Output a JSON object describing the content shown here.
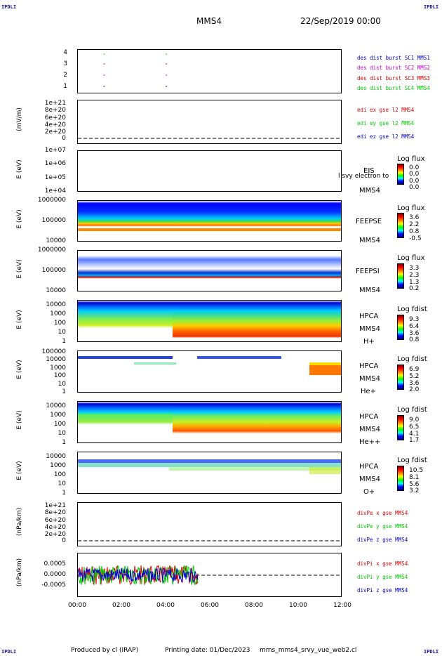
{
  "header": {
    "corner_tl": "IPDLI",
    "corner_tr": "IPDLI",
    "corner_bl": "IPDLI",
    "corner_br": "IPDLI",
    "spacecraft": "MMS4",
    "datetime": "22/Sep/2019 00:00"
  },
  "footer": {
    "produced": "Produced by cl (IRAP)",
    "printing": "Printing date: 01/Dec/2023",
    "file": "mms_mms4_srvy_vue_web2.cl"
  },
  "panels": {
    "p1": {
      "ticks": [
        "4",
        "3",
        "2",
        "1"
      ],
      "legend": [
        "des dist burst SC1 MMS1",
        "des dist burst SC2 MMS2",
        "des dist burst SC3 MMS3",
        "des dist burst SC4 MMS4"
      ]
    },
    "p2": {
      "ylabel": "(mV/m)",
      "ticks": [
        "1e+21",
        "8e+20",
        "6e+20",
        "4e+20",
        "2e+20",
        "0"
      ],
      "legend": [
        "edi ex gse l2 MMS4",
        "edi ey gse l2 MMS4",
        "edi ez gse l2 MMS4"
      ]
    },
    "p3": {
      "ylabel": "E (eV)",
      "ticks": [
        "1e+07",
        "1e+06",
        "1e+05",
        "1e+04"
      ],
      "side": [
        "EIS",
        "MMS4"
      ],
      "overlay": "l svy electron to",
      "cb_title": "Log flux",
      "cb_vals": [
        "0.0",
        "0.0",
        "0.0",
        "0.0"
      ]
    },
    "p4": {
      "ylabel": "E (eV)",
      "ticks": [
        "1000000",
        "100000",
        "10000"
      ],
      "side": [
        "FEEPSE",
        "MMS4"
      ],
      "cb_title": "Log flux",
      "cb_vals": [
        "3.6",
        "2.2",
        "0.8",
        "-0.5"
      ]
    },
    "p5": {
      "ylabel": "E (eV)",
      "ticks": [
        "1000000",
        "100000",
        "10000"
      ],
      "side": [
        "FEEPSI",
        "MMS4"
      ],
      "cb_title": "Log flux",
      "cb_vals": [
        "3.3",
        "2.3",
        "1.3",
        "0.2"
      ]
    },
    "p6": {
      "ylabel": "E (eV)",
      "ticks": [
        "10000",
        "1000",
        "100",
        "10",
        "1"
      ],
      "side": [
        "HPCA",
        "MMS4",
        "H+"
      ],
      "cb_title": "Log fdist",
      "cb_vals": [
        "9.3",
        "6.4",
        "3.6",
        "0.8"
      ]
    },
    "p7": {
      "ylabel": "E (eV)",
      "ticks": [
        "100000",
        "10000",
        "1000",
        "100",
        "10",
        "1"
      ],
      "side": [
        "HPCA",
        "MMS4",
        "He+"
      ],
      "cb_title": "Log fdist",
      "cb_vals": [
        "6.9",
        "5.2",
        "3.6",
        "2.0"
      ]
    },
    "p8": {
      "ylabel": "E (eV)",
      "ticks": [
        "10000",
        "1000",
        "100",
        "10",
        "1"
      ],
      "side": [
        "HPCA",
        "MMS4",
        "He++"
      ],
      "cb_title": "Log fdist",
      "cb_vals": [
        "9.0",
        "6.5",
        "4.1",
        "1.7"
      ]
    },
    "p9": {
      "ylabel": "E (eV)",
      "ticks": [
        "10000",
        "1000",
        "100",
        "10",
        "1"
      ],
      "side": [
        "HPCA",
        "MMS4",
        "O+"
      ],
      "cb_title": "Log fdist",
      "cb_vals": [
        "10.5",
        "8.1",
        "5.6",
        "3.2"
      ]
    },
    "p10": {
      "ylabel": "(nPa/km)",
      "ticks": [
        "1e+21",
        "8e+20",
        "6e+20",
        "4e+20",
        "2e+20",
        "0"
      ],
      "legend": [
        "divPe x gse MMS4",
        "divPe y gse MMS4",
        "divPe z gse MMS4"
      ]
    },
    "p11": {
      "ylabel": "(nPa/km)",
      "ticks": [
        "0.0005",
        "0.0000",
        "-0.0005"
      ],
      "legend": [
        "divPi x gse MMS4",
        "divPi y gse MMS4",
        "divPi z gse MMS4"
      ]
    }
  },
  "x_ticks": [
    "00:00",
    "02:00",
    "04:00",
    "06:00",
    "08:00",
    "10:00",
    "12:00"
  ],
  "colors": {
    "red": "#dd0000",
    "green": "#00cc00",
    "blue": "#0000cc",
    "magenta": "#cc00cc",
    "corner": "#1010a0"
  },
  "chart_data": {
    "type": "heatmap",
    "x_range": [
      "00:00",
      "12:00"
    ],
    "spectrograms": [
      {
        "instrument": "EIS",
        "colorbar": "Log flux",
        "range": [
          0.0,
          0.0
        ],
        "ylim": [
          10000,
          10000000
        ]
      },
      {
        "instrument": "FEEPSE",
        "colorbar": "Log flux",
        "range": [
          -0.5,
          3.6
        ],
        "ylim": [
          10000,
          1000000
        ]
      },
      {
        "instrument": "FEEPSI",
        "colorbar": "Log flux",
        "range": [
          0.2,
          3.3
        ],
        "ylim": [
          10000,
          1000000
        ]
      },
      {
        "instrument": "HPCA H+",
        "colorbar": "Log fdist",
        "range": [
          0.8,
          9.3
        ],
        "ylim": [
          1,
          10000
        ]
      },
      {
        "instrument": "HPCA He+",
        "colorbar": "Log fdist",
        "range": [
          2.0,
          6.9
        ],
        "ylim": [
          1,
          100000
        ]
      },
      {
        "instrument": "HPCA He++",
        "colorbar": "Log fdist",
        "range": [
          1.7,
          9.0
        ],
        "ylim": [
          1,
          10000
        ]
      },
      {
        "instrument": "HPCA O+",
        "colorbar": "Log fdist",
        "range": [
          3.2,
          10.5
        ],
        "ylim": [
          1,
          10000
        ]
      }
    ],
    "burst_intervals": [
      {
        "sc": 4,
        "start": "01:10",
        "end": "01:15"
      },
      {
        "sc": 4,
        "start": "04:00",
        "end": "04:10"
      }
    ],
    "divPi": {
      "start": "00:00",
      "end": "05:30",
      "ylim": [
        -0.0008,
        0.0008
      ]
    }
  }
}
